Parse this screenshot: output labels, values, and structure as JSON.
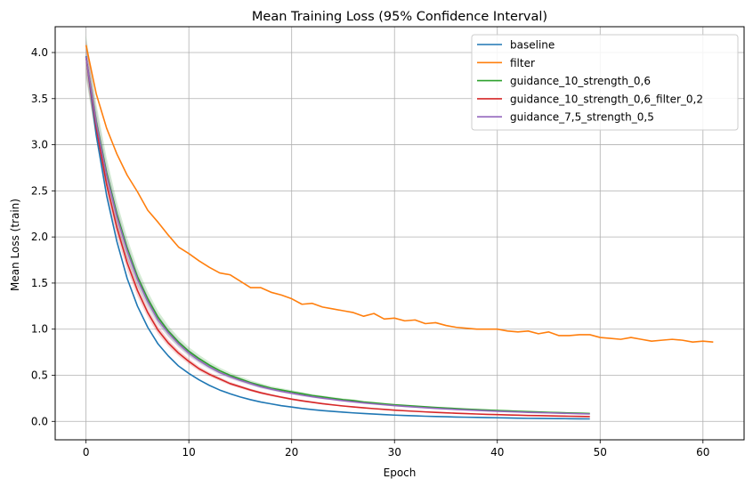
{
  "chart_data": {
    "type": "line",
    "title": "Mean Training Loss (95% Confidence Interval)",
    "xlabel": "Epoch",
    "ylabel": "Mean Loss (train)",
    "xlim": [
      -3,
      64
    ],
    "ylim": [
      -0.2,
      4.28
    ],
    "xticks": [
      0,
      10,
      20,
      30,
      40,
      50,
      60
    ],
    "yticks": [
      0.0,
      0.5,
      1.0,
      1.5,
      2.0,
      2.5,
      3.0,
      3.5,
      4.0
    ],
    "xtick_labels": [
      "0",
      "10",
      "20",
      "30",
      "40",
      "50",
      "60"
    ],
    "ytick_labels": [
      "0.0",
      "0.5",
      "1.0",
      "1.5",
      "2.0",
      "2.5",
      "3.0",
      "3.5",
      "4.0"
    ],
    "grid": true,
    "legend_position": "top-right",
    "series": [
      {
        "name": "baseline",
        "color": "#1f77b4",
        "x": [
          0,
          1,
          2,
          3,
          4,
          5,
          6,
          7,
          8,
          9,
          10,
          11,
          12,
          13,
          14,
          15,
          16,
          17,
          18,
          19,
          20,
          21,
          22,
          23,
          24,
          25,
          26,
          27,
          28,
          29,
          30,
          31,
          32,
          33,
          34,
          35,
          36,
          37,
          38,
          39,
          40,
          41,
          42,
          43,
          44,
          45,
          46,
          47,
          48,
          49
        ],
        "y": [
          3.96,
          3.1,
          2.45,
          1.95,
          1.55,
          1.25,
          1.02,
          0.84,
          0.71,
          0.6,
          0.52,
          0.45,
          0.39,
          0.34,
          0.3,
          0.265,
          0.235,
          0.21,
          0.19,
          0.17,
          0.155,
          0.14,
          0.128,
          0.117,
          0.108,
          0.1,
          0.092,
          0.085,
          0.079,
          0.073,
          0.068,
          0.064,
          0.06,
          0.056,
          0.053,
          0.05,
          0.047,
          0.045,
          0.043,
          0.041,
          0.039,
          0.037,
          0.035,
          0.033,
          0.032,
          0.031,
          0.03,
          0.029,
          0.028,
          0.027
        ]
      },
      {
        "name": "filter",
        "color": "#ff7f0e",
        "x": [
          0,
          1,
          2,
          3,
          4,
          5,
          6,
          7,
          8,
          9,
          10,
          11,
          12,
          13,
          14,
          15,
          16,
          17,
          18,
          19,
          20,
          21,
          22,
          23,
          24,
          25,
          26,
          27,
          28,
          29,
          30,
          31,
          32,
          33,
          34,
          35,
          36,
          37,
          38,
          39,
          40,
          41,
          42,
          43,
          44,
          45,
          46,
          47,
          48,
          49,
          50,
          51,
          52,
          53,
          54,
          55,
          56,
          57,
          58,
          59,
          60,
          61
        ],
        "y": [
          4.08,
          3.55,
          3.18,
          2.9,
          2.67,
          2.49,
          2.29,
          2.16,
          2.02,
          1.89,
          1.82,
          1.74,
          1.67,
          1.61,
          1.59,
          1.52,
          1.45,
          1.45,
          1.4,
          1.37,
          1.33,
          1.27,
          1.28,
          1.24,
          1.22,
          1.2,
          1.18,
          1.14,
          1.17,
          1.11,
          1.12,
          1.09,
          1.1,
          1.06,
          1.07,
          1.04,
          1.02,
          1.01,
          1.0,
          1.0,
          1.0,
          0.98,
          0.97,
          0.98,
          0.95,
          0.97,
          0.93,
          0.93,
          0.94,
          0.94,
          0.91,
          0.9,
          0.89,
          0.91,
          0.89,
          0.87,
          0.88,
          0.89,
          0.88,
          0.86,
          0.87,
          0.86
        ]
      },
      {
        "name": "guidance_10_strength_0,6",
        "color": "#2ca02c",
        "x": [
          0,
          1,
          2,
          3,
          4,
          5,
          6,
          7,
          8,
          9,
          10,
          11,
          12,
          13,
          14,
          15,
          16,
          17,
          18,
          19,
          20,
          21,
          22,
          23,
          24,
          25,
          26,
          27,
          28,
          29,
          30,
          31,
          32,
          33,
          34,
          35,
          36,
          37,
          38,
          39,
          40,
          41,
          42,
          43,
          44,
          45,
          46,
          47,
          48,
          49
        ],
        "y": [
          3.95,
          3.25,
          2.7,
          2.25,
          1.88,
          1.57,
          1.33,
          1.13,
          0.98,
          0.86,
          0.76,
          0.68,
          0.61,
          0.55,
          0.5,
          0.46,
          0.42,
          0.39,
          0.36,
          0.34,
          0.32,
          0.3,
          0.28,
          0.265,
          0.25,
          0.235,
          0.225,
          0.21,
          0.2,
          0.19,
          0.18,
          0.173,
          0.165,
          0.158,
          0.151,
          0.145,
          0.139,
          0.133,
          0.128,
          0.123,
          0.118,
          0.114,
          0.11,
          0.106,
          0.102,
          0.098,
          0.095,
          0.092,
          0.089,
          0.086
        ],
        "band": 0.06
      },
      {
        "name": "guidance_10_strength_0,6_filter_0,2",
        "color": "#d62728",
        "x": [
          0,
          1,
          2,
          3,
          4,
          5,
          6,
          7,
          8,
          9,
          10,
          11,
          12,
          13,
          14,
          15,
          16,
          17,
          18,
          19,
          20,
          21,
          22,
          23,
          24,
          25,
          26,
          27,
          28,
          29,
          30,
          31,
          32,
          33,
          34,
          35,
          36,
          37,
          38,
          39,
          40,
          41,
          42,
          43,
          44,
          45,
          46,
          47,
          48,
          49
        ],
        "y": [
          3.95,
          3.18,
          2.57,
          2.1,
          1.72,
          1.42,
          1.18,
          0.99,
          0.85,
          0.74,
          0.65,
          0.57,
          0.51,
          0.46,
          0.41,
          0.375,
          0.34,
          0.31,
          0.285,
          0.262,
          0.241,
          0.223,
          0.207,
          0.192,
          0.179,
          0.167,
          0.157,
          0.147,
          0.138,
          0.13,
          0.122,
          0.115,
          0.109,
          0.103,
          0.098,
          0.093,
          0.088,
          0.084,
          0.08,
          0.076,
          0.073,
          0.07,
          0.067,
          0.064,
          0.062,
          0.06,
          0.058,
          0.056,
          0.054,
          0.052
        ],
        "band": 0.045
      },
      {
        "name": "guidance_7,5_strength_0,5",
        "color": "#9467bd",
        "x": [
          0,
          1,
          2,
          3,
          4,
          5,
          6,
          7,
          8,
          9,
          10,
          11,
          12,
          13,
          14,
          15,
          16,
          17,
          18,
          19,
          20,
          21,
          22,
          23,
          24,
          25,
          26,
          27,
          28,
          29,
          30,
          31,
          32,
          33,
          34,
          35,
          36,
          37,
          38,
          39,
          40,
          41,
          42,
          43,
          44,
          45,
          46,
          47,
          48,
          49
        ],
        "y": [
          3.95,
          3.23,
          2.67,
          2.22,
          1.85,
          1.54,
          1.3,
          1.1,
          0.96,
          0.84,
          0.74,
          0.66,
          0.59,
          0.53,
          0.485,
          0.445,
          0.41,
          0.375,
          0.35,
          0.325,
          0.305,
          0.285,
          0.268,
          0.252,
          0.238,
          0.224,
          0.212,
          0.2,
          0.19,
          0.18,
          0.171,
          0.163,
          0.155,
          0.148,
          0.141,
          0.135,
          0.129,
          0.124,
          0.119,
          0.114,
          0.11,
          0.106,
          0.102,
          0.098,
          0.095,
          0.092,
          0.089,
          0.086,
          0.083,
          0.08
        ],
        "band": 0.05
      }
    ]
  }
}
